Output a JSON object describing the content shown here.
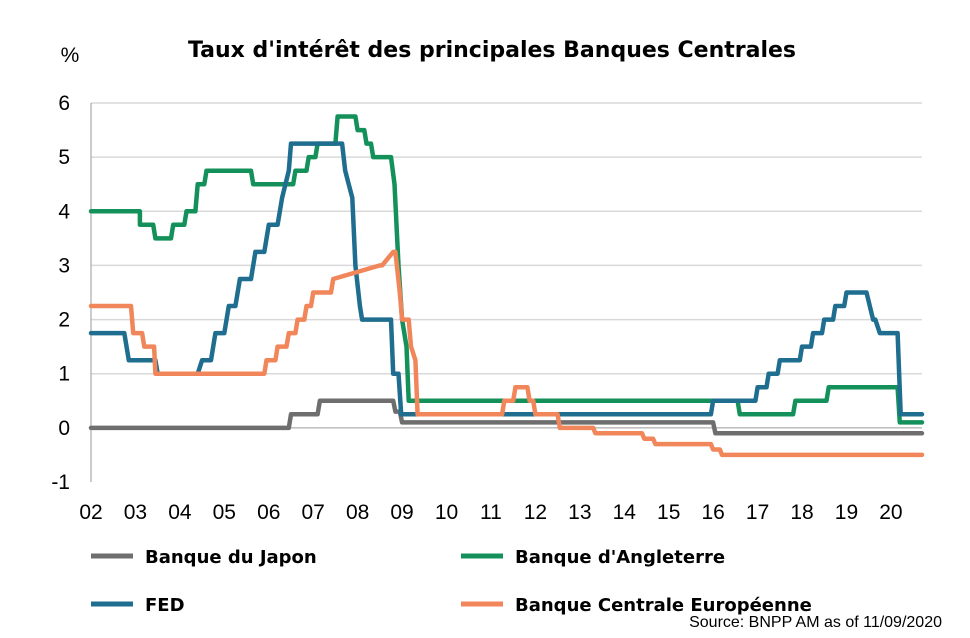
{
  "chart_data": {
    "type": "line",
    "title": "Taux d'intérêt des principales Banques Centrales",
    "ylabel": "%",
    "xlabel": "",
    "xlim": [
      2002,
      2020.7
    ],
    "ylim": [
      -1,
      6
    ],
    "y_ticks": [
      "6",
      "5",
      "4",
      "3",
      "2",
      "1",
      "0",
      "-1"
    ],
    "x_ticks": [
      "02",
      "03",
      "04",
      "05",
      "06",
      "07",
      "08",
      "09",
      "10",
      "11",
      "12",
      "13",
      "14",
      "15",
      "16",
      "17",
      "18",
      "19",
      "20"
    ],
    "grid": true,
    "legend_position": "bottom",
    "source": "Source: BNPP AM as of 11/09/2020",
    "series": [
      {
        "name": "Banque du Japon",
        "color": "#6e6e6e",
        "x": [
          2002,
          2006.45,
          2006.5,
          2007.1,
          2007.15,
          2008.8,
          2008.85,
          2008.95,
          2009.0,
          2016.0,
          2016.05,
          2020.7
        ],
        "y": [
          0,
          0,
          0.25,
          0.25,
          0.5,
          0.5,
          0.3,
          0.3,
          0.1,
          0.1,
          -0.1,
          -0.1
        ]
      },
      {
        "name": "Banque d'Angleterre",
        "color": "#14915a",
        "x": [
          2002,
          2003.1,
          2003.1,
          2003.4,
          2003.45,
          2003.8,
          2003.85,
          2004.1,
          2004.15,
          2004.35,
          2004.4,
          2004.55,
          2004.6,
          2005.6,
          2005.65,
          2006.55,
          2006.6,
          2006.85,
          2006.9,
          2007.05,
          2007.1,
          2007.5,
          2007.55,
          2007.95,
          2008.0,
          2008.15,
          2008.2,
          2008.3,
          2008.35,
          2008.75,
          2008.83,
          2008.92,
          2009.0,
          2009.1,
          2009.15,
          2016.55,
          2016.6,
          2017.8,
          2017.85,
          2018.55,
          2018.6,
          2020.15,
          2020.2,
          2020.7
        ],
        "y": [
          4,
          4,
          3.75,
          3.75,
          3.5,
          3.5,
          3.75,
          3.75,
          4,
          4,
          4.5,
          4.5,
          4.75,
          4.75,
          4.5,
          4.5,
          4.75,
          4.75,
          5,
          5,
          5.25,
          5.25,
          5.75,
          5.75,
          5.5,
          5.5,
          5.25,
          5.25,
          5,
          5,
          4.5,
          3,
          2,
          1.5,
          0.5,
          0.5,
          0.25,
          0.25,
          0.5,
          0.5,
          0.75,
          0.75,
          0.1,
          0.1
        ]
      },
      {
        "name": "FED",
        "color": "#1f6e8f",
        "x": [
          2002,
          2002.75,
          2002.85,
          2003.45,
          2003.5,
          2004.4,
          2004.5,
          2004.7,
          2004.8,
          2005.0,
          2005.1,
          2005.25,
          2005.35,
          2005.6,
          2005.7,
          2005.9,
          2006.0,
          2006.2,
          2006.3,
          2006.45,
          2006.5,
          2007.65,
          2007.72,
          2007.8,
          2007.88,
          2007.95,
          2008.05,
          2008.1,
          2008.25,
          2008.3,
          2008.75,
          2008.8,
          2008.92,
          2008.98,
          2015.95,
          2016.0,
          2016.95,
          2017.0,
          2017.2,
          2017.25,
          2017.45,
          2017.5,
          2017.95,
          2018.0,
          2018.2,
          2018.25,
          2018.45,
          2018.5,
          2018.7,
          2018.75,
          2018.95,
          2019.0,
          2019.45,
          2019.6,
          2019.65,
          2019.75,
          2020.15,
          2020.22,
          2020.7
        ],
        "y": [
          1.75,
          1.75,
          1.25,
          1.25,
          1,
          1,
          1.25,
          1.25,
          1.75,
          1.75,
          2.25,
          2.25,
          2.75,
          2.75,
          3.25,
          3.25,
          3.75,
          3.75,
          4.25,
          4.75,
          5.25,
          5.25,
          4.75,
          4.5,
          4.25,
          3,
          2.25,
          2,
          2,
          2,
          2,
          1,
          1,
          0.25,
          0.25,
          0.5,
          0.5,
          0.75,
          0.75,
          1,
          1,
          1.25,
          1.25,
          1.5,
          1.5,
          1.75,
          1.75,
          2,
          2,
          2.25,
          2.25,
          2.5,
          2.5,
          2,
          2,
          1.75,
          1.75,
          0.25,
          0.25
        ]
      },
      {
        "name": "Banque Centrale Européenne",
        "color": "#f0865a",
        "x": [
          2002,
          2002.9,
          2002.95,
          2003.15,
          2003.2,
          2003.42,
          2003.45,
          2005.9,
          2005.95,
          2006.15,
          2006.2,
          2006.4,
          2006.45,
          2006.6,
          2006.65,
          2006.8,
          2006.85,
          2006.95,
          2007.0,
          2007.4,
          2007.45,
          2008.5,
          2008.55,
          2008.8,
          2008.85,
          2008.95,
          2009.0,
          2009.15,
          2009.2,
          2009.3,
          2009.35,
          2011.25,
          2011.3,
          2011.5,
          2011.55,
          2011.82,
          2011.87,
          2011.95,
          2012.0,
          2012.5,
          2012.55,
          2013.3,
          2013.35,
          2014.4,
          2014.45,
          2014.65,
          2014.7,
          2015.95,
          2016.0,
          2016.15,
          2016.2,
          2019.65,
          2019.7,
          2020.7
        ],
        "y": [
          2.25,
          2.25,
          1.75,
          1.75,
          1.5,
          1.5,
          1,
          1,
          1.25,
          1.25,
          1.5,
          1.5,
          1.75,
          1.75,
          2,
          2,
          2.25,
          2.25,
          2.5,
          2.5,
          2.75,
          3,
          3,
          3.25,
          3.25,
          2.5,
          2,
          2,
          1.5,
          1.25,
          0.25,
          0.25,
          0.5,
          0.5,
          0.75,
          0.75,
          0.5,
          0.5,
          0.25,
          0.25,
          0,
          0,
          -0.1,
          -0.1,
          -0.2,
          -0.2,
          -0.3,
          -0.3,
          -0.4,
          -0.4,
          -0.5,
          -0.5,
          -0.5,
          -0.5
        ]
      }
    ]
  }
}
